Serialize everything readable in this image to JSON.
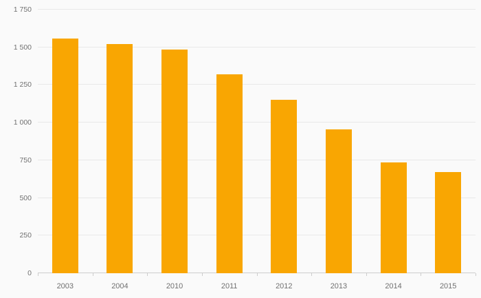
{
  "chart_data": {
    "type": "bar",
    "title": "",
    "xlabel": "",
    "ylabel": "",
    "categories": [
      "2003",
      "2004",
      "2010",
      "2011",
      "2012",
      "2013",
      "2014",
      "2015"
    ],
    "values": [
      1560,
      1520,
      1485,
      1320,
      1150,
      955,
      735,
      670
    ],
    "ylim": [
      0,
      1750
    ],
    "ytick_interval": 250,
    "ytick_labels": [
      "0",
      "250",
      "500",
      "750",
      "1 000",
      "1 250",
      "1 500",
      "1 750"
    ],
    "grid": true,
    "legend": "none",
    "colors": {
      "bar": "#f9a602",
      "background": "#fafafa",
      "gridline": "#e8e8e8",
      "axis_line": "#cccccc",
      "label": "#707070"
    }
  }
}
